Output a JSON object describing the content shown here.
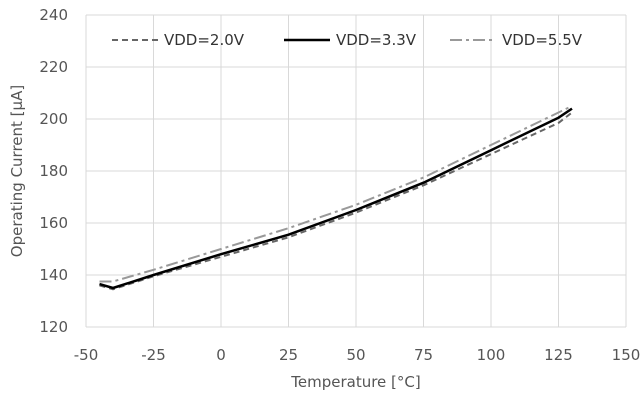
{
  "chart_data": {
    "type": "line",
    "xlabel": "Temperature [°C]",
    "ylabel": "Operating Current [μA]",
    "xlim": [
      -50,
      150
    ],
    "ylim": [
      120,
      240
    ],
    "xticks": [
      -50,
      -25,
      0,
      25,
      50,
      75,
      100,
      125,
      150
    ],
    "yticks": [
      120,
      140,
      160,
      180,
      200,
      220,
      240
    ],
    "xtick_labels": [
      "-50",
      "-25",
      "0",
      "25",
      "50",
      "75",
      "100",
      "125",
      "150"
    ],
    "ytick_labels": [
      "120",
      "140",
      "160",
      "180",
      "200",
      "220",
      "240"
    ],
    "grid": true,
    "legend_position": "top",
    "series": [
      {
        "name": "VDD=2.0V",
        "style": "dashed",
        "color": "#666666",
        "x": [
          -45,
          -40,
          -25,
          0,
          25,
          50,
          75,
          100,
          125,
          130
        ],
        "y": [
          136,
          134.5,
          139.5,
          147,
          154.5,
          164,
          174.5,
          186.5,
          198.5,
          202.5
        ]
      },
      {
        "name": "VDD=3.3V",
        "style": "solid",
        "color": "#000000",
        "x": [
          -45,
          -40,
          -25,
          0,
          25,
          50,
          75,
          100,
          125,
          130
        ],
        "y": [
          136.5,
          135,
          140,
          148,
          155.5,
          165,
          175.5,
          188,
          200.5,
          204
        ]
      },
      {
        "name": "VDD=5.5V",
        "style": "dashdot",
        "color": "#999999",
        "x": [
          -45,
          -40,
          -25,
          0,
          25,
          50,
          75,
          100,
          125,
          130
        ],
        "y": [
          137.5,
          137.5,
          142,
          150,
          158,
          167,
          177.5,
          190,
          202.5,
          205
        ]
      }
    ]
  }
}
